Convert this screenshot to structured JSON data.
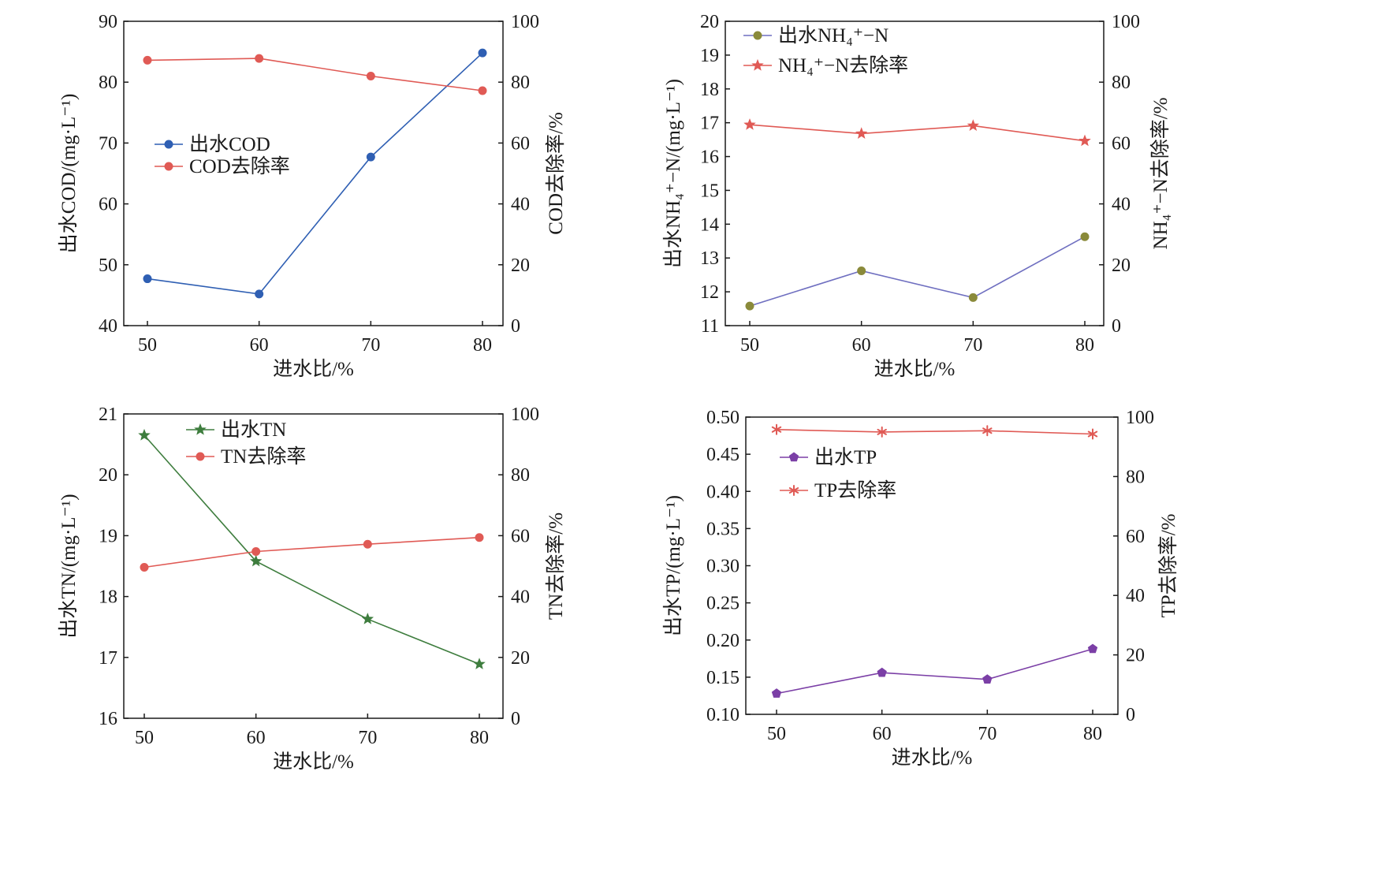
{
  "colors": {
    "blue": "#2f5fb3",
    "red": "#e05a55",
    "purple_line": "#6f6fc0",
    "olive_marker": "#8a8a3a",
    "green": "#3e7d3e",
    "purple": "#7b3fa6",
    "axis": "#1a1a1a"
  },
  "chart_data": [
    {
      "type": "line",
      "xlabel": "进水比/%",
      "ylabel": "出水COD/(mg·L⁻¹)",
      "y2label": "COD去除率/%",
      "x": [
        50,
        60,
        70,
        80
      ],
      "xticks": [
        "50",
        "60",
        "70",
        "80"
      ],
      "ylim": [
        40,
        90
      ],
      "yticks": [
        40,
        50,
        60,
        70,
        80,
        90
      ],
      "ytick_labels": [
        "40",
        "50",
        "60",
        "70",
        "80",
        "90"
      ],
      "y2lim": [
        0,
        100
      ],
      "y2ticks": [
        0,
        20,
        40,
        60,
        80,
        100
      ],
      "y2tick_labels": [
        "0",
        "20",
        "40",
        "60",
        "80",
        "100"
      ],
      "legend_position": "center-left",
      "series": [
        {
          "name": "出水COD",
          "axis": "left",
          "values": [
            47.7,
            45.2,
            67.7,
            84.8
          ],
          "color": "#2f5fb3",
          "marker": "circle"
        },
        {
          "name": "COD去除率",
          "axis": "right",
          "values": [
            87.2,
            87.8,
            82.0,
            77.2
          ],
          "color": "#e05a55",
          "marker": "circle"
        }
      ]
    },
    {
      "type": "line",
      "xlabel": "进水比/%",
      "ylabel": "出水NH₄⁺−N/(mg·L⁻¹)",
      "y2label": "NH₄⁺−N去除率/%",
      "x": [
        50,
        60,
        70,
        80
      ],
      "xticks": [
        "50",
        "60",
        "70",
        "80"
      ],
      "ylim": [
        11,
        20
      ],
      "yticks": [
        11,
        12,
        13,
        14,
        15,
        16,
        17,
        18,
        19,
        20
      ],
      "ytick_labels": [
        "11",
        "12",
        "13",
        "14",
        "15",
        "16",
        "17",
        "18",
        "19",
        "20"
      ],
      "y2lim": [
        0,
        100
      ],
      "y2ticks": [
        0,
        20,
        40,
        60,
        80,
        100
      ],
      "y2tick_labels": [
        "0",
        "20",
        "40",
        "60",
        "80",
        "100"
      ],
      "legend_position": "top-left",
      "series": [
        {
          "name": "出水NH₄⁺−N",
          "axis": "left",
          "values": [
            11.58,
            12.62,
            11.83,
            13.63
          ],
          "color": "#6f6fc0",
          "marker_color": "#8a8a3a",
          "marker": "circle"
        },
        {
          "name": "NH₄⁺−N去除率",
          "axis": "right",
          "values": [
            66.0,
            63.1,
            65.7,
            60.7
          ],
          "color": "#e05a55",
          "marker": "star"
        }
      ]
    },
    {
      "type": "line",
      "xlabel": "进水比/%",
      "ylabel": "出水TN/(mg·L⁻¹)",
      "y2label": "TN去除率/%",
      "x": [
        50,
        60,
        70,
        80
      ],
      "xticks": [
        "50",
        "60",
        "70",
        "80"
      ],
      "ylim": [
        16,
        21
      ],
      "yticks": [
        16,
        17,
        18,
        19,
        20,
        21
      ],
      "ytick_labels": [
        "16",
        "17",
        "18",
        "19",
        "20",
        "21"
      ],
      "y2lim": [
        0,
        100
      ],
      "y2ticks": [
        0,
        20,
        40,
        60,
        80,
        100
      ],
      "y2tick_labels": [
        "0",
        "20",
        "40",
        "60",
        "80",
        "100"
      ],
      "legend_position": "top-center",
      "series": [
        {
          "name": "出水TN",
          "axis": "left",
          "values": [
            20.65,
            18.58,
            17.63,
            16.89
          ],
          "color": "#3e7d3e",
          "marker": "star"
        },
        {
          "name": "TN去除率",
          "axis": "right",
          "values": [
            49.6,
            54.8,
            57.2,
            59.4
          ],
          "color": "#e05a55",
          "marker": "circle"
        }
      ]
    },
    {
      "type": "line",
      "xlabel": "进水比/%",
      "ylabel": "出水TP/(mg·L⁻¹)",
      "y2label": "TP去除率/%",
      "x": [
        50,
        60,
        70,
        80
      ],
      "xticks": [
        "50",
        "60",
        "70",
        "80"
      ],
      "ylim": [
        0.1,
        0.5
      ],
      "yticks": [
        0.1,
        0.15,
        0.2,
        0.25,
        0.3,
        0.35,
        0.4,
        0.45,
        0.5
      ],
      "ytick_labels": [
        "0.10",
        "0.15",
        "0.20",
        "0.25",
        "0.30",
        "0.35",
        "0.40",
        "0.45",
        "0.50"
      ],
      "y2lim": [
        0,
        100
      ],
      "y2ticks": [
        0,
        20,
        40,
        60,
        80,
        100
      ],
      "y2tick_labels": [
        "0",
        "20",
        "40",
        "60",
        "80",
        "100"
      ],
      "legend_position": "top-left",
      "series": [
        {
          "name": "出水TP",
          "axis": "left",
          "values": [
            0.128,
            0.156,
            0.147,
            0.188
          ],
          "color": "#7b3fa6",
          "marker": "pentagon"
        },
        {
          "name": "TP去除率",
          "axis": "right",
          "values": [
            95.8,
            95.0,
            95.4,
            94.3
          ],
          "color": "#e05a55",
          "marker": "asterisk"
        }
      ]
    }
  ]
}
